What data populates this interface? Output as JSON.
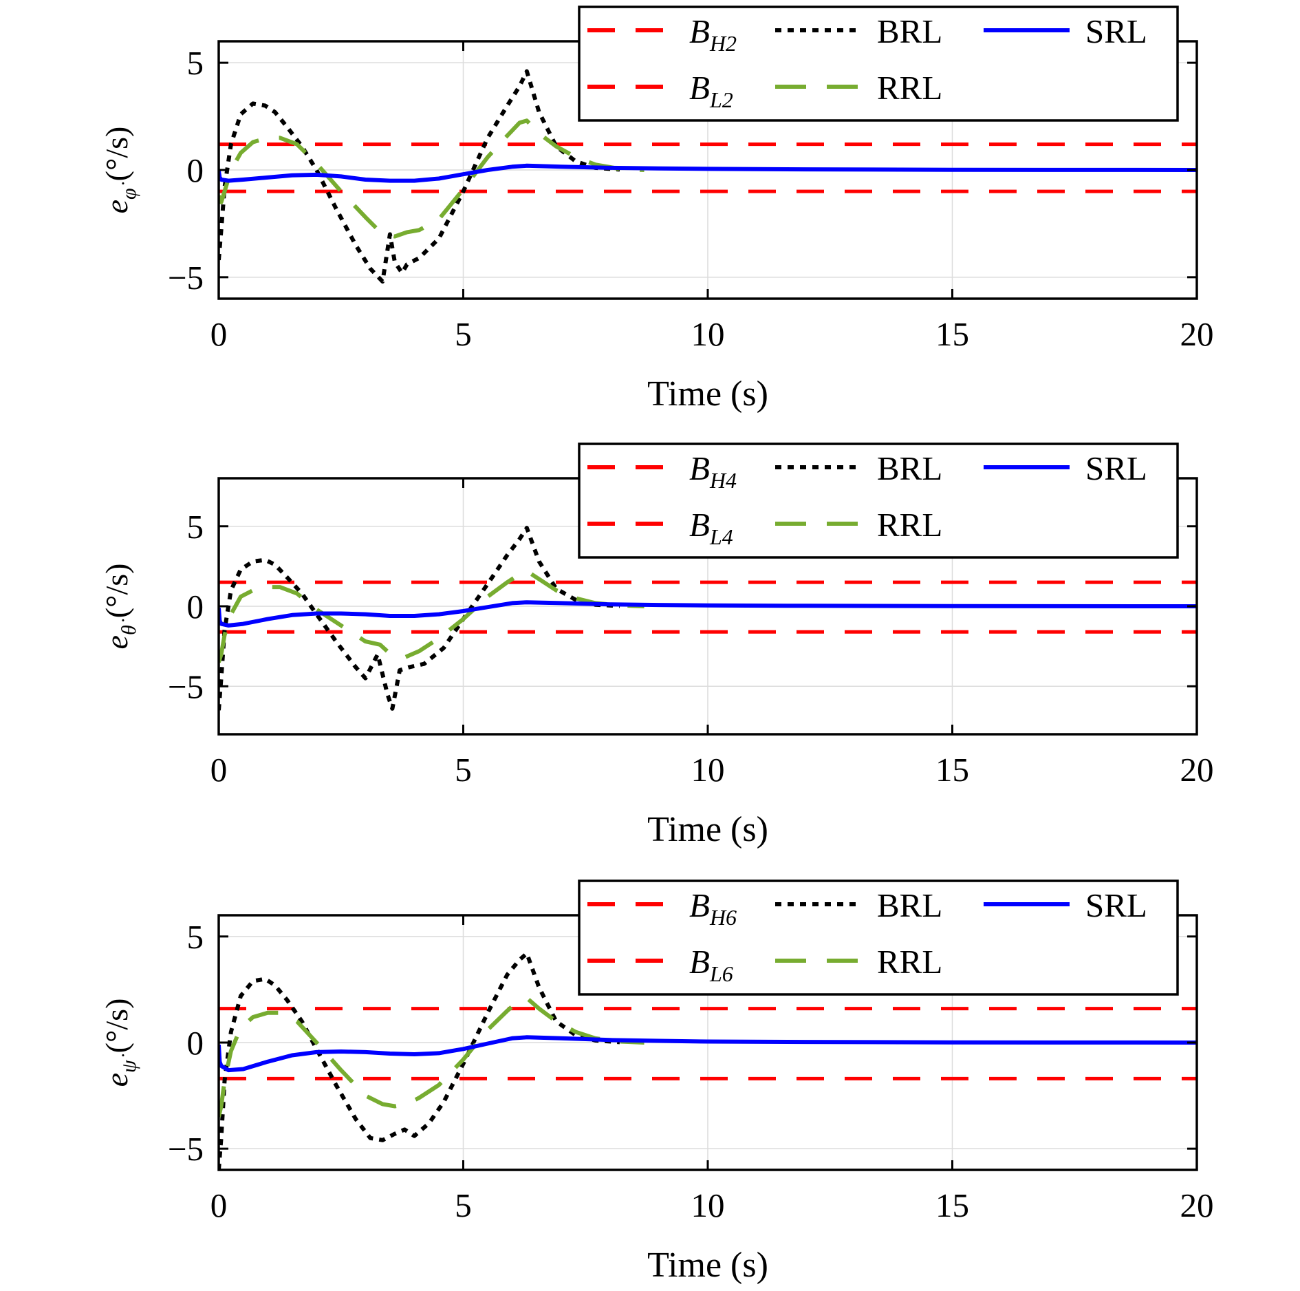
{
  "chart_data": [
    {
      "type": "line",
      "xlabel": "Time (s)",
      "ylabel": {
        "main": "e",
        "sub": "φ̇",
        "unit": "(°/s)"
      },
      "xlim": [
        0,
        20
      ],
      "ylim": [
        -6,
        6
      ],
      "xticks": [
        "0",
        "5",
        "10",
        "15",
        "20"
      ],
      "yticks": [
        "−5",
        "0",
        "5"
      ],
      "grid": true,
      "legend_position": "top-right",
      "legend": [
        {
          "key": "BH",
          "main": "B",
          "sub": "H2"
        },
        {
          "key": "BRL",
          "text": "BRL"
        },
        {
          "key": "SRL",
          "text": "SRL"
        },
        {
          "key": "BL",
          "main": "B",
          "sub": "L2"
        },
        {
          "key": "RRL",
          "text": "RRL"
        }
      ],
      "bounds": {
        "upper": 1.2,
        "lower": -1.0
      },
      "series": [
        {
          "name": "BRL",
          "color": "#000000",
          "x": [
            0,
            0.05,
            0.12,
            0.25,
            0.45,
            0.7,
            0.95,
            1.15,
            1.4,
            1.7,
            2.0,
            2.4,
            2.8,
            3.1,
            3.35,
            3.5,
            3.6,
            3.75,
            3.85,
            4.1,
            4.5,
            5.0,
            5.5,
            5.9,
            6.15,
            6.3,
            6.55,
            6.9,
            7.3,
            7.7,
            8.2
          ],
          "y": [
            -4.2,
            -2.8,
            -0.8,
            1.2,
            2.6,
            3.1,
            3.0,
            2.7,
            2.0,
            1.1,
            0.0,
            -1.8,
            -3.5,
            -4.6,
            -5.2,
            -3.0,
            -4.3,
            -4.8,
            -4.4,
            -4.1,
            -3.2,
            -1.0,
            1.5,
            3.0,
            3.9,
            4.6,
            2.7,
            1.1,
            0.4,
            0.1,
            0.02
          ]
        },
        {
          "name": "RRL",
          "color": "#77AC30",
          "x": [
            0,
            0.05,
            0.12,
            0.25,
            0.45,
            0.7,
            1.0,
            1.25,
            1.6,
            2.0,
            2.5,
            3.0,
            3.35,
            3.6,
            3.85,
            4.1,
            4.5,
            5.0,
            5.5,
            5.9,
            6.15,
            6.3,
            6.55,
            6.9,
            7.3,
            7.7,
            8.2,
            8.7
          ],
          "y": [
            -1.2,
            -1.5,
            -1.0,
            0.0,
            0.8,
            1.3,
            1.5,
            1.5,
            1.2,
            0.3,
            -1.0,
            -2.2,
            -3.0,
            -3.1,
            -2.9,
            -2.8,
            -2.3,
            -0.9,
            0.6,
            1.6,
            2.2,
            2.3,
            1.7,
            1.1,
            0.6,
            0.25,
            0.05,
            0.0
          ]
        },
        {
          "name": "SRL",
          "color": "#0000FF",
          "x": [
            0,
            0.02,
            0.05,
            0.2,
            0.5,
            1.0,
            1.5,
            2.0,
            2.5,
            3.0,
            3.5,
            4.0,
            4.5,
            5.0,
            5.5,
            6.0,
            6.3,
            7.0,
            8.0,
            9.0,
            10,
            12,
            15,
            20
          ],
          "y": [
            -0.05,
            -0.35,
            -0.45,
            -0.5,
            -0.45,
            -0.35,
            -0.25,
            -0.22,
            -0.3,
            -0.45,
            -0.5,
            -0.5,
            -0.4,
            -0.2,
            0.0,
            0.15,
            0.2,
            0.15,
            0.1,
            0.07,
            0.05,
            0.03,
            0.01,
            0.0
          ]
        }
      ]
    },
    {
      "type": "line",
      "xlabel": "Time (s)",
      "ylabel": {
        "main": "e",
        "sub": "θ̇",
        "unit": "(°/s)"
      },
      "xlim": [
        0,
        20
      ],
      "ylim": [
        -8,
        8
      ],
      "xticks": [
        "0",
        "5",
        "10",
        "15",
        "20"
      ],
      "yticks": [
        "−5",
        "0",
        "5"
      ],
      "grid": true,
      "legend_position": "top-right",
      "legend": [
        {
          "key": "BH",
          "main": "B",
          "sub": "H4"
        },
        {
          "key": "BRL",
          "text": "BRL"
        },
        {
          "key": "SRL",
          "text": "SRL"
        },
        {
          "key": "BL",
          "main": "B",
          "sub": "L4"
        },
        {
          "key": "RRL",
          "text": "RRL"
        }
      ],
      "bounds": {
        "upper": 1.5,
        "lower": -1.6
      },
      "series": [
        {
          "name": "BRL",
          "color": "#000000",
          "x": [
            0,
            0.05,
            0.12,
            0.25,
            0.45,
            0.7,
            0.95,
            1.15,
            1.4,
            1.7,
            2.0,
            2.4,
            2.8,
            3.0,
            3.25,
            3.45,
            3.55,
            3.7,
            3.9,
            4.2,
            4.6,
            5.0,
            5.5,
            5.9,
            6.15,
            6.3,
            6.55,
            6.9,
            7.3,
            7.7,
            8.2
          ],
          "y": [
            -6.5,
            -4.5,
            -1.5,
            1.0,
            2.3,
            2.8,
            2.9,
            2.6,
            1.8,
            0.8,
            -0.5,
            -2.2,
            -3.8,
            -4.5,
            -3.0,
            -5.5,
            -6.4,
            -4.0,
            -3.8,
            -3.6,
            -2.6,
            -0.8,
            1.4,
            3.2,
            4.2,
            4.9,
            2.8,
            1.1,
            0.4,
            0.1,
            0.02
          ]
        },
        {
          "name": "RRL",
          "color": "#77AC30",
          "x": [
            0,
            0.05,
            0.12,
            0.25,
            0.45,
            0.7,
            1.0,
            1.25,
            1.6,
            2.0,
            2.5,
            3.0,
            3.3,
            3.55,
            3.8,
            4.1,
            4.5,
            5.0,
            5.5,
            5.9,
            6.15,
            6.3,
            6.55,
            6.9,
            7.3,
            7.7,
            8.2,
            8.7
          ],
          "y": [
            -3.5,
            -3.0,
            -1.8,
            -0.5,
            0.6,
            1.0,
            1.2,
            1.2,
            0.8,
            -0.2,
            -1.2,
            -2.2,
            -2.4,
            -3.1,
            -3.2,
            -2.8,
            -2.0,
            -0.8,
            0.6,
            1.5,
            2.0,
            2.2,
            1.7,
            1.0,
            0.5,
            0.2,
            0.05,
            0.0
          ]
        },
        {
          "name": "SRL",
          "color": "#0000FF",
          "x": [
            0,
            0.02,
            0.05,
            0.2,
            0.5,
            1.0,
            1.5,
            2.0,
            2.5,
            3.0,
            3.5,
            4.0,
            4.5,
            5.0,
            5.5,
            6.0,
            6.3,
            7.0,
            8.0,
            9.0,
            10,
            12,
            15,
            20
          ],
          "y": [
            -0.1,
            -0.9,
            -1.1,
            -1.2,
            -1.1,
            -0.8,
            -0.55,
            -0.45,
            -0.45,
            -0.5,
            -0.6,
            -0.6,
            -0.5,
            -0.3,
            -0.05,
            0.2,
            0.25,
            0.2,
            0.12,
            0.08,
            0.05,
            0.03,
            0.01,
            0.0
          ]
        }
      ]
    },
    {
      "type": "line",
      "xlabel": "Time (s)",
      "ylabel": {
        "main": "e",
        "sub": "ψ̇",
        "unit": "(°/s)"
      },
      "xlim": [
        0,
        20
      ],
      "ylim": [
        -6,
        6
      ],
      "xticks": [
        "0",
        "5",
        "10",
        "15",
        "20"
      ],
      "yticks": [
        "−5",
        "0",
        "5"
      ],
      "grid": true,
      "legend_position": "top-right",
      "legend": [
        {
          "key": "BH",
          "main": "B",
          "sub": "H6"
        },
        {
          "key": "BRL",
          "text": "BRL"
        },
        {
          "key": "SRL",
          "text": "SRL"
        },
        {
          "key": "BL",
          "main": "B",
          "sub": "L6"
        },
        {
          "key": "RRL",
          "text": "RRL"
        }
      ],
      "bounds": {
        "upper": 1.6,
        "lower": -1.7
      },
      "series": [
        {
          "name": "BRL",
          "color": "#000000",
          "x": [
            0,
            0.05,
            0.12,
            0.25,
            0.45,
            0.7,
            0.95,
            1.15,
            1.4,
            1.7,
            2.0,
            2.4,
            2.8,
            3.1,
            3.35,
            3.6,
            3.8,
            4.0,
            4.3,
            4.6,
            5.0,
            5.5,
            5.9,
            6.15,
            6.3,
            6.55,
            6.9,
            7.3,
            7.7,
            8.2
          ],
          "y": [
            -6.0,
            -4.5,
            -1.8,
            0.5,
            2.2,
            2.9,
            3.0,
            2.7,
            2.0,
            1.0,
            -0.3,
            -2.0,
            -3.6,
            -4.5,
            -4.6,
            -4.3,
            -4.1,
            -4.4,
            -3.8,
            -2.8,
            -1.0,
            1.4,
            3.2,
            3.9,
            4.2,
            2.6,
            1.0,
            0.35,
            0.1,
            0.02
          ]
        },
        {
          "name": "RRL",
          "color": "#77AC30",
          "x": [
            0,
            0.05,
            0.12,
            0.25,
            0.45,
            0.7,
            1.0,
            1.25,
            1.6,
            2.0,
            2.5,
            3.0,
            3.35,
            3.6,
            3.85,
            4.1,
            4.5,
            5.0,
            5.5,
            5.9,
            6.15,
            6.3,
            6.55,
            6.9,
            7.3,
            7.7,
            8.2,
            8.7
          ],
          "y": [
            -3.5,
            -3.0,
            -1.8,
            -0.4,
            0.7,
            1.2,
            1.4,
            1.4,
            1.0,
            0.0,
            -1.3,
            -2.5,
            -2.9,
            -3.0,
            -2.9,
            -2.6,
            -2.0,
            -0.8,
            0.6,
            1.5,
            2.0,
            2.1,
            1.6,
            1.0,
            0.5,
            0.2,
            0.05,
            0.0
          ]
        },
        {
          "name": "SRL",
          "color": "#0000FF",
          "x": [
            0,
            0.02,
            0.05,
            0.2,
            0.5,
            1.0,
            1.5,
            2.0,
            2.5,
            3.0,
            3.5,
            4.0,
            4.5,
            5.0,
            5.5,
            6.0,
            6.3,
            7.0,
            8.0,
            9.0,
            10,
            12,
            15,
            20
          ],
          "y": [
            -0.1,
            -0.9,
            -1.1,
            -1.3,
            -1.25,
            -0.9,
            -0.6,
            -0.45,
            -0.42,
            -0.45,
            -0.52,
            -0.55,
            -0.5,
            -0.3,
            -0.05,
            0.2,
            0.25,
            0.2,
            0.12,
            0.08,
            0.05,
            0.03,
            0.01,
            0.0
          ]
        }
      ]
    }
  ]
}
